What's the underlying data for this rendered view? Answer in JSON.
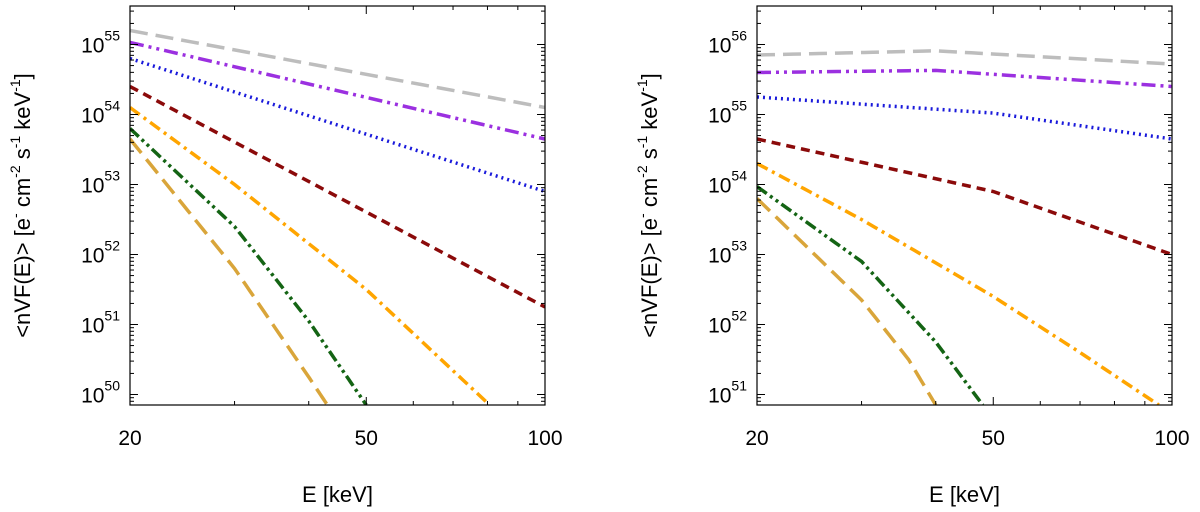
{
  "chart_data": [
    {
      "type": "line",
      "xscale": "log",
      "yscale": "log",
      "xlabel": "E [keV]",
      "ylabel": {
        "lead": "<nVF(E)> [e",
        "e_sup": "-",
        "cm": " cm",
        "cm_sup": "-2",
        "s": " s",
        "s_sup": "-1",
        "kev": " keV",
        "kev_sup": "-1",
        "close": "]"
      },
      "xlim": [
        20,
        100
      ],
      "ylim_exp": [
        49.85,
        55.55
      ],
      "xticks": [
        20,
        50,
        100
      ],
      "yticks": [
        {
          "base": "10",
          "exp": "50",
          "value_exp": 50
        },
        {
          "base": "10",
          "exp": "51",
          "value_exp": 51
        },
        {
          "base": "10",
          "exp": "52",
          "value_exp": 52
        },
        {
          "base": "10",
          "exp": "53",
          "value_exp": 53
        },
        {
          "base": "10",
          "exp": "54",
          "value_exp": 54
        },
        {
          "base": "10",
          "exp": "55",
          "value_exp": 55
        }
      ],
      "series": [
        {
          "name": "grey-long-dash",
          "color": "#bdbdbd",
          "dash": "18,8",
          "x": [
            20,
            100
          ],
          "log10_y": [
            55.2,
            54.1
          ]
        },
        {
          "name": "purple-dash-dot-dot",
          "color": "#9b30e0",
          "dash": "14,5,3,5,3,5",
          "x": [
            20,
            100
          ],
          "log10_y": [
            55.03,
            53.65
          ]
        },
        {
          "name": "blue-dotted",
          "color": "#1a1adb",
          "dash": "2,4",
          "x": [
            20,
            100
          ],
          "log10_y": [
            54.8,
            52.9
          ]
        },
        {
          "name": "darkred-dashed",
          "color": "#8b0a0a",
          "dash": "9,6",
          "x": [
            20,
            100
          ],
          "log10_y": [
            54.4,
            51.25
          ]
        },
        {
          "name": "orange-dash-dot",
          "color": "#ffa500",
          "dash": "12,5,3,5",
          "x": [
            20,
            30,
            50,
            80
          ],
          "log10_y": [
            54.1,
            53.0,
            51.5,
            49.88
          ]
        },
        {
          "name": "green-dash-dot-dot",
          "color": "#146414",
          "dash": "12,4,3,4,3,4",
          "x": [
            20,
            30,
            40,
            50
          ],
          "log10_y": [
            53.8,
            52.4,
            51.05,
            49.85
          ]
        },
        {
          "name": "gold-long-dash",
          "color": "#d9a53a",
          "dash": "18,8",
          "x": [
            20,
            30,
            40,
            43
          ],
          "log10_y": [
            53.65,
            51.8,
            50.25,
            49.85
          ]
        }
      ]
    },
    {
      "type": "line",
      "xscale": "log",
      "yscale": "log",
      "xlabel": "E [keV]",
      "ylabel": {
        "lead": "<nVF(E)> [e",
        "e_sup": "-",
        "cm": " cm",
        "cm_sup": "-2",
        "s": " s",
        "s_sup": "-1",
        "kev": " keV",
        "kev_sup": "-1",
        "close": "]"
      },
      "xlim": [
        20,
        100
      ],
      "ylim_exp": [
        50.85,
        56.55
      ],
      "xticks": [
        20,
        50,
        100
      ],
      "yticks": [
        {
          "base": "10",
          "exp": "51",
          "value_exp": 51
        },
        {
          "base": "10",
          "exp": "52",
          "value_exp": 52
        },
        {
          "base": "10",
          "exp": "53",
          "value_exp": 53
        },
        {
          "base": "10",
          "exp": "54",
          "value_exp": 54
        },
        {
          "base": "10",
          "exp": "55",
          "value_exp": 55
        },
        {
          "base": "10",
          "exp": "56",
          "value_exp": 56
        }
      ],
      "series": [
        {
          "name": "grey-long-dash",
          "color": "#bdbdbd",
          "dash": "18,8",
          "x": [
            20,
            40,
            100
          ],
          "log10_y": [
            55.85,
            55.91,
            55.72
          ]
        },
        {
          "name": "purple-dash-dot-dot",
          "color": "#9b30e0",
          "dash": "14,5,3,5,3,5",
          "x": [
            20,
            40,
            100
          ],
          "log10_y": [
            55.6,
            55.63,
            55.4
          ]
        },
        {
          "name": "blue-dotted",
          "color": "#1a1adb",
          "dash": "2,4",
          "x": [
            20,
            50,
            100
          ],
          "log10_y": [
            55.25,
            55.02,
            54.65
          ]
        },
        {
          "name": "darkred-dashed",
          "color": "#8b0a0a",
          "dash": "9,6",
          "x": [
            20,
            50,
            100
          ],
          "log10_y": [
            54.65,
            53.9,
            53.0
          ]
        },
        {
          "name": "orange-dash-dot",
          "color": "#ffa500",
          "dash": "12,5,3,5",
          "x": [
            20,
            30,
            50,
            70,
            95
          ],
          "log10_y": [
            54.3,
            53.5,
            52.4,
            51.6,
            50.85
          ]
        },
        {
          "name": "green-dash-dot-dot",
          "color": "#146414",
          "dash": "12,4,3,4,3,4",
          "x": [
            20,
            30,
            40,
            48
          ],
          "log10_y": [
            53.97,
            52.9,
            51.75,
            50.85
          ]
        },
        {
          "name": "gold-long-dash",
          "color": "#d9a53a",
          "dash": "18,8",
          "x": [
            20,
            30,
            36,
            40
          ],
          "log10_y": [
            53.8,
            52.35,
            51.5,
            50.85
          ]
        }
      ]
    }
  ]
}
